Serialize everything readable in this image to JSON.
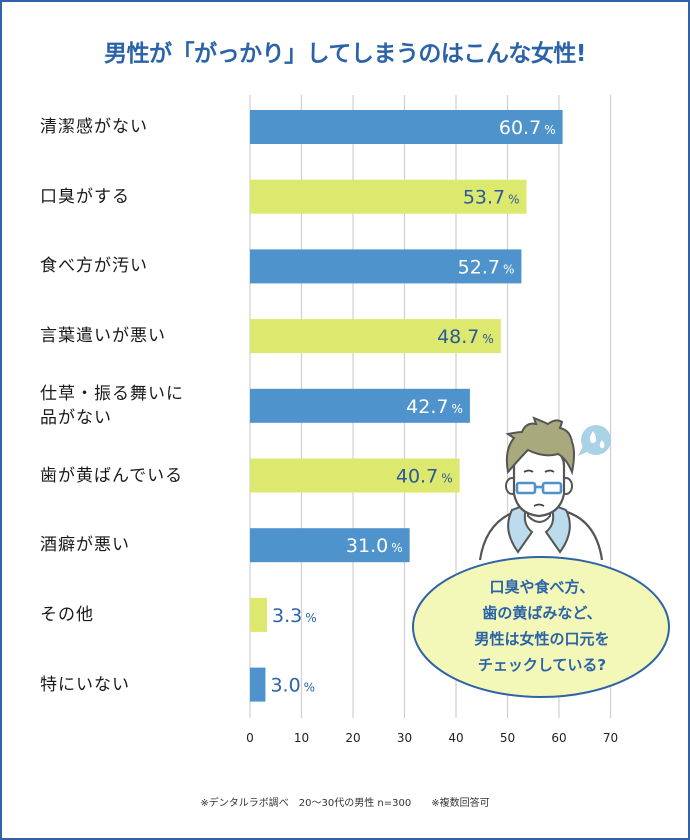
{
  "chart_data": {
    "type": "bar",
    "orientation": "horizontal",
    "title": "男性が「がっかり」してしまうのはこんな女性!",
    "categories": [
      "清潔感がない",
      "口臭がする",
      "食べ方が汚い",
      "言葉遣いが悪い",
      "仕草・振る舞いに品がない",
      "歯が黄ばんでいる",
      "酒癖が悪い",
      "その他",
      "特にいない"
    ],
    "category_lines": [
      [
        "清潔感がない"
      ],
      [
        "口臭がする"
      ],
      [
        "食べ方が汚い"
      ],
      [
        "言葉遣いが悪い"
      ],
      [
        "仕草・振る舞いに",
        "品がない"
      ],
      [
        "歯が黄ばんでいる"
      ],
      [
        "酒癖が悪い"
      ],
      [
        "その他"
      ],
      [
        "特にいない"
      ]
    ],
    "values": [
      60.7,
      53.7,
      52.7,
      48.7,
      42.7,
      40.7,
      31.0,
      3.3,
      3.0
    ],
    "value_labels": [
      "60.7",
      "53.7",
      "52.7",
      "48.7",
      "42.7",
      "40.7",
      "31.0",
      "3.3",
      "3.0"
    ],
    "unit": "%",
    "xlim": [
      0,
      70
    ],
    "xticks": [
      0,
      10,
      20,
      30,
      40,
      50,
      60,
      70
    ],
    "tick_labels": [
      "0",
      "10",
      "20",
      "30",
      "40",
      "50",
      "60",
      "70"
    ],
    "grid": true,
    "xlabel": "",
    "ylabel": "",
    "bar_colors": [
      "#4e93cc",
      "#dde86e"
    ]
  },
  "colors": {
    "title": "#2a63a8",
    "frame": "#2f62a6",
    "bar_blue": "#4e93cc",
    "bar_green": "#dde86e",
    "label_dark": "#2a5a9a",
    "grid": "#cfcfcf",
    "bubble_fill": "#f3f7b8",
    "sweat": "#a9d2e6"
  },
  "callout": {
    "lines": [
      "口臭や食べ方、",
      "歯の黄ばみなど、",
      "男性は女性の口元を",
      "チェックしている?"
    ],
    "icon": "worried-man-with-glasses"
  },
  "footnote": "※デンタルラボ調べ　20〜30代の男性 n=300　　※複数回答可"
}
